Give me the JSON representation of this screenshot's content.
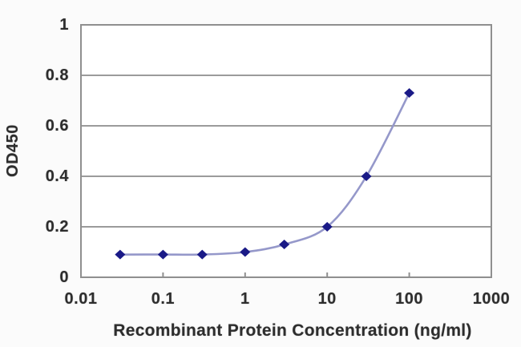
{
  "chart_data": {
    "type": "line",
    "x": [
      0.03,
      0.1,
      0.3,
      1,
      3,
      10,
      30,
      100
    ],
    "series": [
      {
        "name": "OD450",
        "values": [
          0.09,
          0.09,
          0.09,
          0.1,
          0.13,
          0.2,
          0.4,
          0.73
        ]
      }
    ],
    "title": "",
    "xlabel": "Recombinant Protein Concentration (ng/ml)",
    "ylabel": "OD450",
    "xscale": "log",
    "xlim": [
      0.01,
      1000
    ],
    "ylim": [
      0,
      1
    ],
    "xticks": {
      "values": [
        0.01,
        0.1,
        1,
        10,
        100,
        1000
      ],
      "labels": [
        "0.01",
        "0.1",
        "1",
        "10",
        "100",
        "1000"
      ]
    },
    "yticks": {
      "values": [
        0,
        0.2,
        0.4,
        0.6,
        0.8,
        1
      ],
      "labels": [
        "0",
        "0.2",
        "0.4",
        "0.6",
        "0.8",
        "1"
      ]
    },
    "grid": true,
    "legend": false,
    "marker": "diamond",
    "line_style": "smooth",
    "colors": {
      "line": "#9598ca",
      "marker": "#1a1a87",
      "grid": "#9b9b9b",
      "border": "#8f8f8f",
      "axis_text": "#2d2d2d",
      "plot_bg": "#ffffff",
      "page_bg": "#fbfbfb"
    }
  }
}
